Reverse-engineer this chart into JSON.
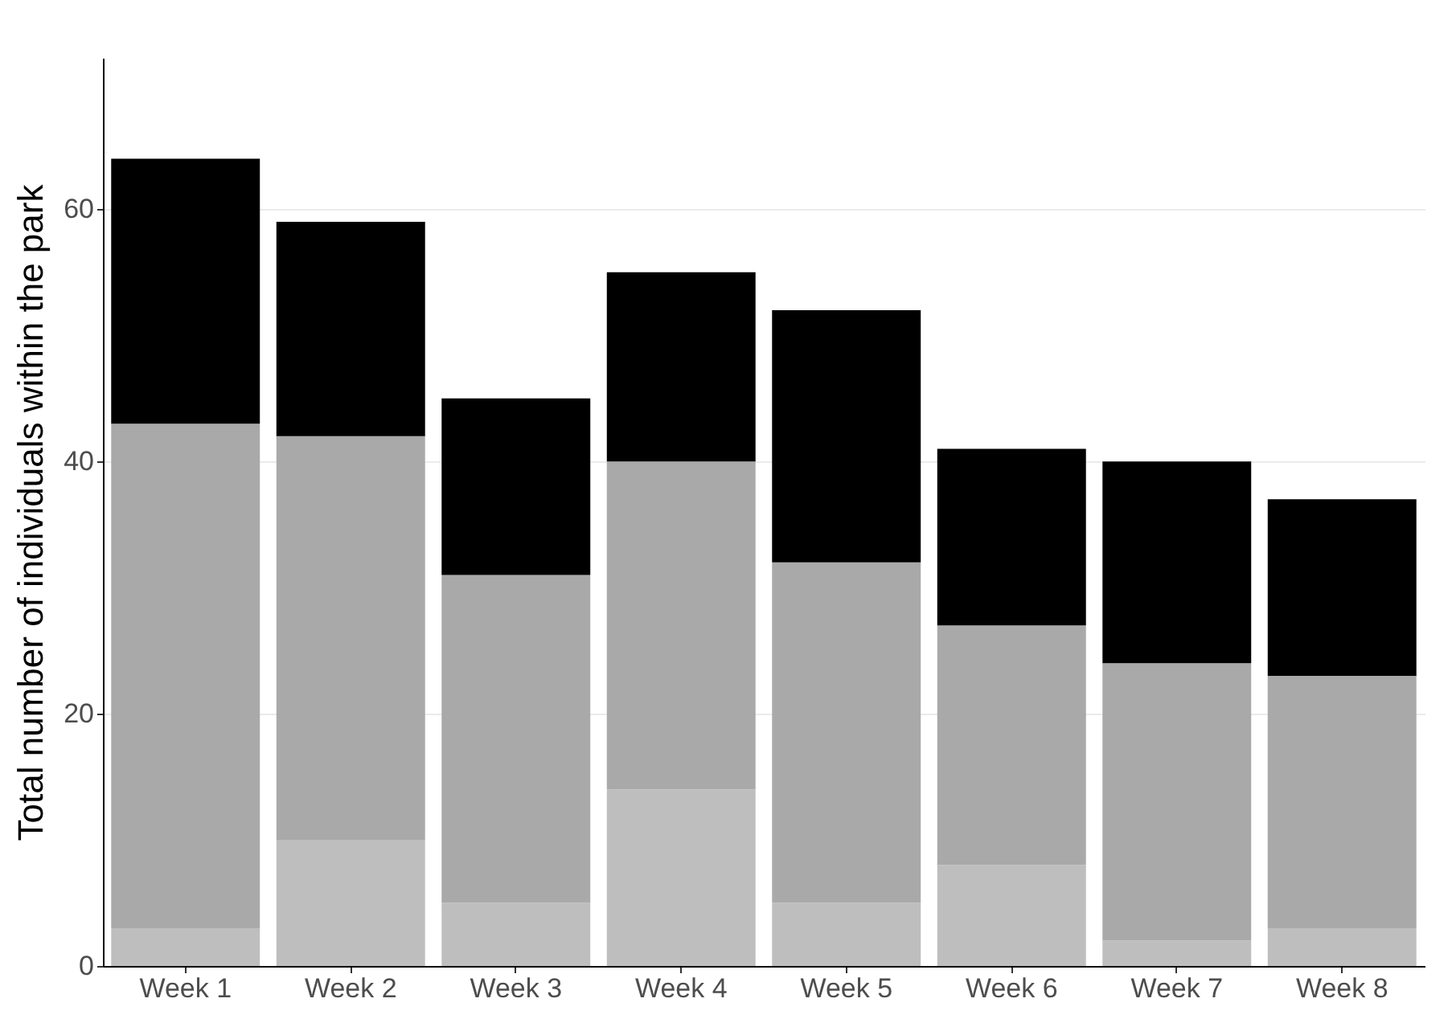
{
  "chart_data": {
    "type": "bar",
    "stacked": true,
    "ylabel": "Total number of individuals within the park",
    "categories": [
      "Week 1",
      "Week 2",
      "Week 3",
      "Week 4",
      "Week 5",
      "Week 6",
      "Week 7",
      "Week 8"
    ],
    "series": [
      {
        "color": "#bebebe",
        "values": [
          3,
          10,
          5,
          14,
          5,
          8,
          2,
          3
        ]
      },
      {
        "color": "#a9a9a9",
        "values": [
          40,
          32,
          26,
          26,
          27,
          19,
          22,
          20
        ]
      },
      {
        "color": "#000000",
        "values": [
          21,
          17,
          14,
          15,
          20,
          14,
          16,
          14
        ]
      }
    ],
    "ylim": [
      0,
      72
    ],
    "yticks": [
      0,
      20,
      40,
      60
    ],
    "grid": "y",
    "legend": false
  }
}
